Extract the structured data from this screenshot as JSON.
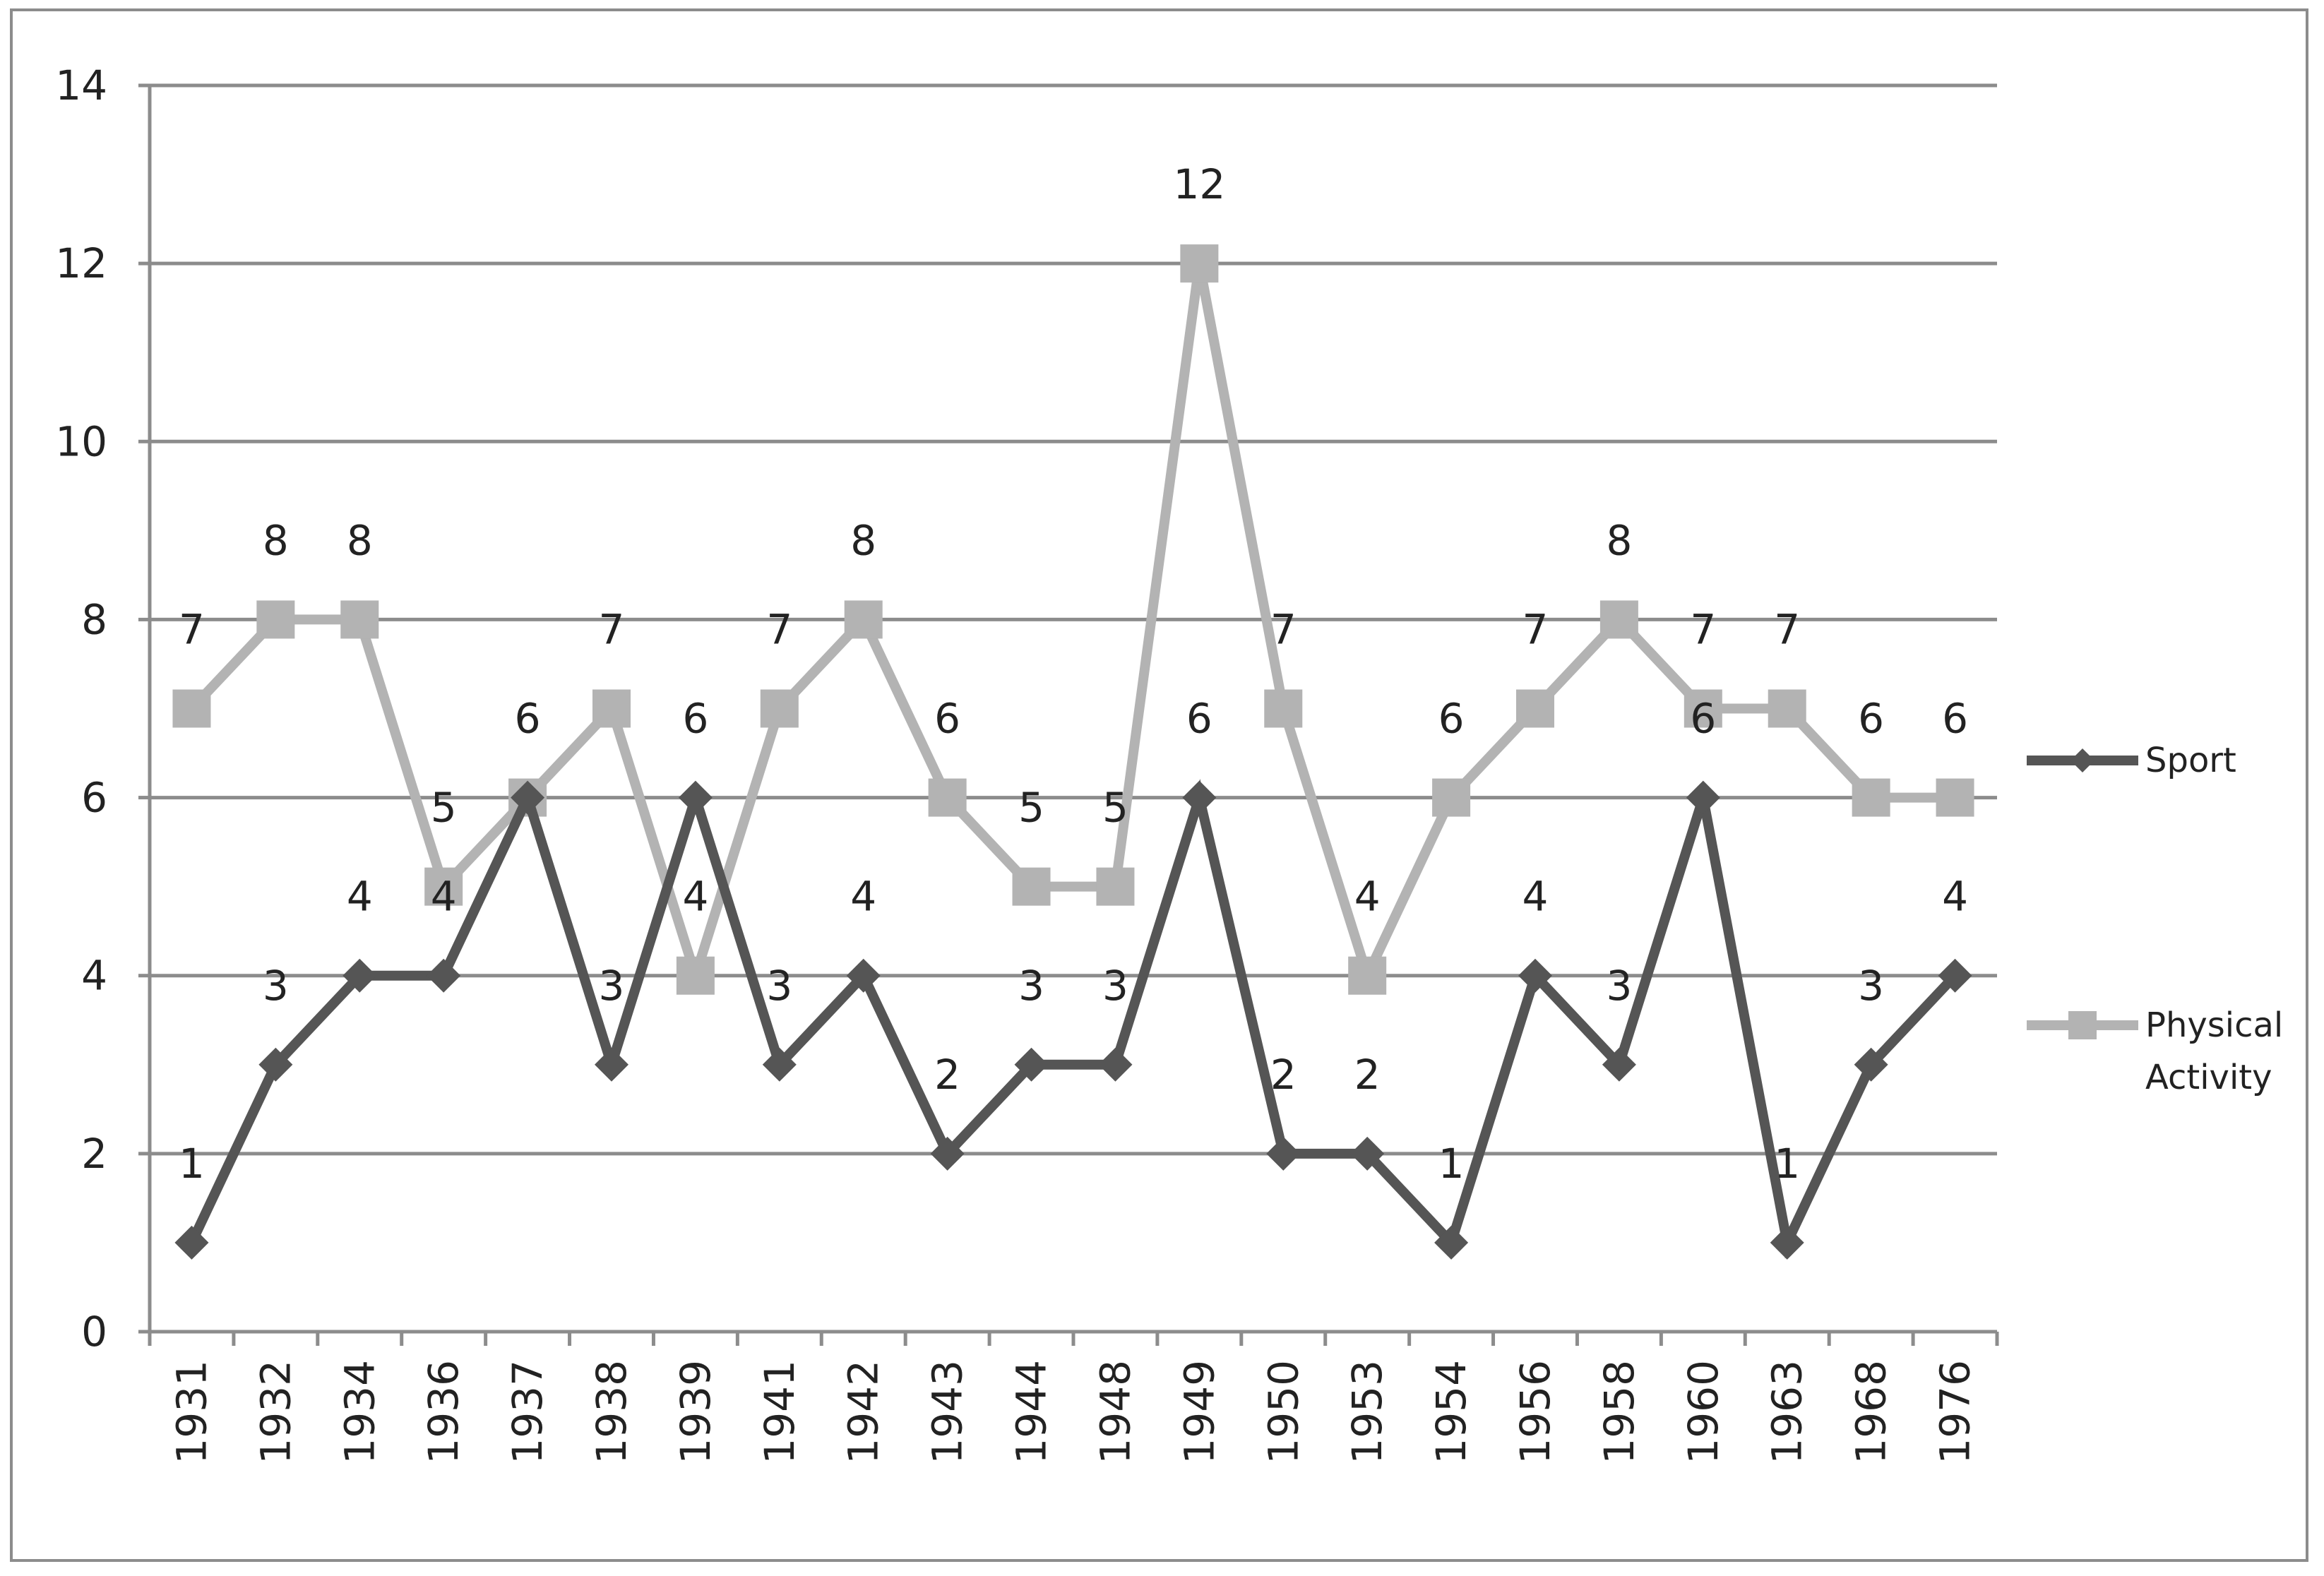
{
  "chart_data": {
    "type": "line",
    "categories": [
      "1931",
      "1932",
      "1934",
      "1936",
      "1937",
      "1938",
      "1939",
      "1941",
      "1942",
      "1943",
      "1944",
      "1948",
      "1949",
      "1950",
      "1953",
      "1954",
      "1956",
      "1958",
      "1960",
      "1963",
      "1968",
      "1976"
    ],
    "ylim": [
      0,
      14
    ],
    "yticks": [
      0,
      2,
      4,
      6,
      8,
      10,
      12,
      14
    ],
    "grid": true,
    "legend_position": "right",
    "series": [
      {
        "name": "Sport",
        "color": "#555555",
        "marker": "diamond",
        "values": [
          1,
          3,
          4,
          4,
          6,
          3,
          6,
          3,
          4,
          2,
          3,
          3,
          6,
          2,
          2,
          1,
          4,
          3,
          6,
          1,
          3,
          4
        ]
      },
      {
        "name": "Physical Activity",
        "legend_lines": [
          "Physical",
          "Activity"
        ],
        "color": "#b3b3b3",
        "marker": "square",
        "values": [
          7,
          8,
          8,
          5,
          6,
          7,
          4,
          7,
          8,
          6,
          5,
          5,
          12,
          7,
          4,
          6,
          7,
          8,
          7,
          7,
          6,
          6
        ]
      }
    ]
  }
}
